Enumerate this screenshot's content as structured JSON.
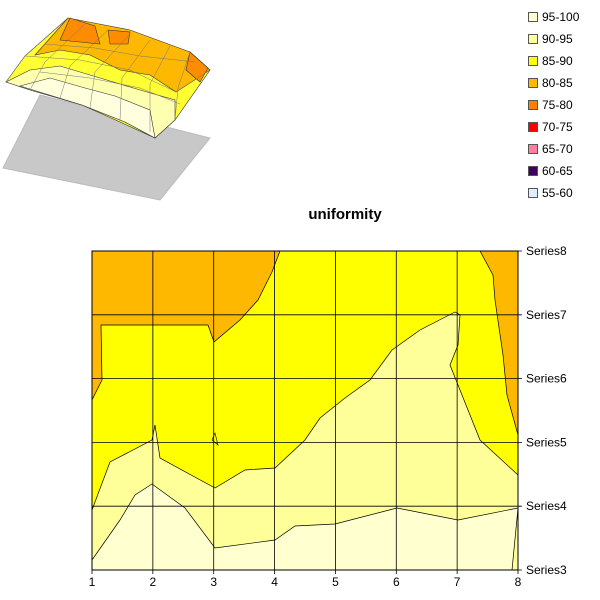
{
  "colors": {
    "band_95_100": "#FFFFD0",
    "band_90_95": "#FFFF99",
    "band_85_90": "#FFFF00",
    "band_80_85": "#FFB800",
    "band_75_80": "#FF7F00",
    "band_70_75": "#FF0000",
    "band_65_70": "#FF7F9F",
    "band_60_65": "#400060",
    "band_55_60": "#DDEEFF",
    "grid": "#000000",
    "base_plane": "#C8C8C8"
  },
  "legend": [
    {
      "label": "95-100",
      "color": "#FFFFD0"
    },
    {
      "label": "90-95",
      "color": "#FFFF99"
    },
    {
      "label": "85-90",
      "color": "#FFFF00"
    },
    {
      "label": "80-85",
      "color": "#FFB800"
    },
    {
      "label": "75-80",
      "color": "#FF7F00"
    },
    {
      "label": "70-75",
      "color": "#FF0000"
    },
    {
      "label": "65-70",
      "color": "#FF7F9F"
    },
    {
      "label": "60-65",
      "color": "#400060"
    },
    {
      "label": "55-60",
      "color": "#DDEEFF"
    }
  ],
  "chart_data": [
    {
      "type": "surface-3d",
      "title": "",
      "note": "3D surface view of the same uniformity data"
    },
    {
      "type": "heatmap",
      "title": "uniformity",
      "x_categories": [
        "1",
        "2",
        "3",
        "4",
        "5",
        "6",
        "7",
        "8"
      ],
      "series": [
        "Series3",
        "Series4",
        "Series5",
        "Series6",
        "Series7",
        "Series8"
      ],
      "values": {
        "Series3": [
          95.5,
          96.5,
          96,
          96,
          96.5,
          97,
          96.5,
          96
        ],
        "Series4": [
          92,
          94.5,
          93,
          93.5,
          94,
          95.5,
          95.5,
          95
        ],
        "Series5": [
          88,
          91,
          89.5,
          90,
          91.5,
          93.5,
          94,
          90
        ],
        "Series6": [
          84.5,
          88.5,
          88,
          88,
          89,
          90.5,
          91.5,
          87
        ],
        "Series7": [
          82.5,
          86,
          86,
          87,
          87.5,
          88,
          88.5,
          85
        ],
        "Series8": [
          81,
          82,
          82,
          86,
          86.5,
          87,
          87,
          83
        ]
      },
      "legend_position": "top-right"
    }
  ]
}
